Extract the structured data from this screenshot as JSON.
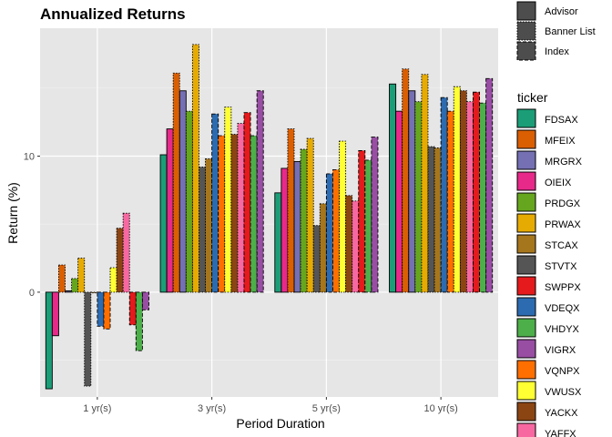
{
  "chart_data": {
    "type": "bar",
    "title": "Annualized Returns",
    "xlabel": "Period Duration",
    "ylabel": "Return (%)",
    "categories": [
      "1 yr(s)",
      "3 yr(s)",
      "5 yr(s)",
      "10 yr(s)"
    ],
    "ylim": [
      -7.7,
      19.4
    ],
    "yticks": [
      0,
      10
    ],
    "grid": true,
    "panel_background": "#e6e6e6",
    "legend_position": "right",
    "linetype_legend": {
      "title": "",
      "entries": [
        {
          "label": "Advisor",
          "style": "solid"
        },
        {
          "label": "Banner List",
          "style": "dotted"
        },
        {
          "label": "Index",
          "style": "dashed"
        }
      ]
    },
    "fill_legend_title": "ticker",
    "series": [
      {
        "name": "FDSAX",
        "color": "#1B9E77",
        "style": "solid",
        "values": [
          -7.1,
          10.1,
          7.3,
          15.3
        ]
      },
      {
        "name": "OIEIX",
        "color": "#E7298A",
        "style": "solid",
        "values": [
          -3.2,
          12.0,
          9.1,
          13.3
        ]
      },
      {
        "name": "MFEIX",
        "color": "#D95F02",
        "style": "dotted",
        "values": [
          2.0,
          16.1,
          12.0,
          16.4
        ]
      },
      {
        "name": "MRGRX",
        "color": "#7570B3",
        "style": "solid",
        "values": [
          0.1,
          14.8,
          9.6,
          14.8
        ]
      },
      {
        "name": "PRDGX",
        "color": "#66A61E",
        "style": "dotted",
        "values": [
          1.0,
          13.3,
          10.5,
          14.0
        ]
      },
      {
        "name": "PRWAX",
        "color": "#E6AB02",
        "style": "dotted",
        "values": [
          2.5,
          18.2,
          11.3,
          16.0
        ]
      },
      {
        "name": "STVTX",
        "color": "#555555",
        "style": "dotted",
        "values": [
          -6.9,
          9.2,
          4.9,
          10.7
        ]
      },
      {
        "name": "STCAX",
        "color": "#A6761D",
        "style": "dotted",
        "values": [
          0.0,
          9.8,
          6.5,
          10.6
        ]
      },
      {
        "name": "VDEQX",
        "color": "#2C6BB0",
        "style": "dashed",
        "values": [
          -2.5,
          13.1,
          8.7,
          14.3
        ]
      },
      {
        "name": "VQNPX",
        "color": "#FF6F00",
        "style": "dashed",
        "values": [
          -2.7,
          11.5,
          9.0,
          13.3
        ]
      },
      {
        "name": "VWUSX",
        "color": "#FFFF33",
        "style": "dotted",
        "values": [
          1.8,
          13.6,
          11.1,
          15.1
        ]
      },
      {
        "name": "YACKX",
        "color": "#8B4513",
        "style": "dotted",
        "values": [
          4.7,
          11.6,
          7.1,
          14.8
        ]
      },
      {
        "name": "YAFFX",
        "color": "#F768A1",
        "style": "dotted",
        "values": [
          5.8,
          12.4,
          6.7,
          14.0
        ]
      },
      {
        "name": "SWPPX",
        "color": "#E41A1C",
        "style": "dashed",
        "values": [
          -2.4,
          13.2,
          10.4,
          14.7
        ]
      },
      {
        "name": "VHDYX",
        "color": "#4DAF4A",
        "style": "dashed",
        "values": [
          -4.3,
          11.5,
          9.7,
          13.9
        ]
      },
      {
        "name": "VIGRX",
        "color": "#984EA3",
        "style": "dashed",
        "values": [
          -1.3,
          14.8,
          11.4,
          15.7
        ]
      }
    ],
    "fill_legend_order": [
      "FDSAX",
      "MFEIX",
      "MRGRX",
      "OIEIX",
      "PRDGX",
      "PRWAX",
      "STCAX",
      "STVTX",
      "SWPPX",
      "VDEQX",
      "VHDYX",
      "VIGRX",
      "VQNPX",
      "VWUSX",
      "YACKX",
      "YAFFX"
    ]
  }
}
